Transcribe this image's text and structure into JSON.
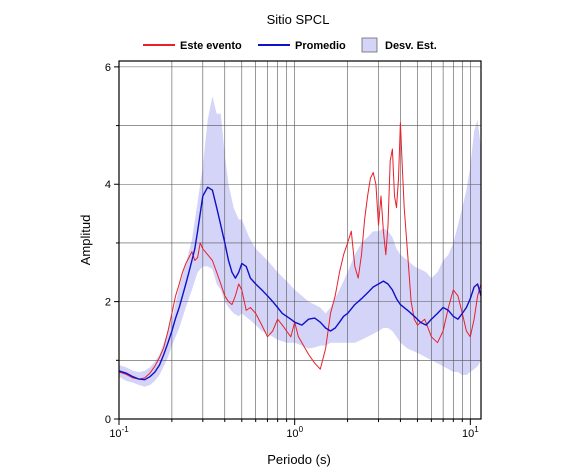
{
  "chart_data": {
    "type": "line",
    "title": "Sitio SPCL",
    "xlabel": "Periodo (s)",
    "ylabel": "Amplitud",
    "x_scale": "log",
    "xlim": [
      0.1,
      11.5
    ],
    "ylim": [
      0,
      6.1
    ],
    "x_ticks": [
      {
        "value": 0.1,
        "base": "10",
        "exp": "-1"
      },
      {
        "value": 1,
        "base": "10",
        "exp": "0"
      },
      {
        "value": 10,
        "base": "10",
        "exp": "1"
      }
    ],
    "y_ticks": [
      0,
      2,
      4,
      6
    ],
    "grid": true,
    "legend_position": "top",
    "legend": [
      {
        "label": "Este evento",
        "kind": "line",
        "color": "#e8202a"
      },
      {
        "label": "Promedio",
        "kind": "line",
        "color": "#1010c8"
      },
      {
        "label": "Desv. Est.",
        "kind": "band",
        "color": "#d4d4f8"
      }
    ],
    "series": [
      {
        "name": "Este evento",
        "color": "#e8202a",
        "x": [
          0.1,
          0.11,
          0.12,
          0.13,
          0.14,
          0.15,
          0.16,
          0.17,
          0.18,
          0.19,
          0.2,
          0.21,
          0.22,
          0.23,
          0.24,
          0.25,
          0.26,
          0.27,
          0.28,
          0.29,
          0.3,
          0.32,
          0.34,
          0.36,
          0.38,
          0.4,
          0.42,
          0.44,
          0.46,
          0.48,
          0.5,
          0.53,
          0.56,
          0.6,
          0.65,
          0.7,
          0.75,
          0.8,
          0.85,
          0.9,
          0.95,
          1.0,
          1.05,
          1.1,
          1.2,
          1.3,
          1.4,
          1.5,
          1.6,
          1.7,
          1.8,
          1.9,
          2.0,
          2.1,
          2.2,
          2.3,
          2.4,
          2.5,
          2.6,
          2.7,
          2.8,
          2.9,
          3.0,
          3.1,
          3.2,
          3.3,
          3.4,
          3.5,
          3.6,
          3.7,
          3.8,
          3.9,
          4.0,
          4.1,
          4.2,
          4.4,
          4.6,
          4.8,
          5.0,
          5.5,
          6.0,
          6.5,
          7.0,
          7.5,
          8.0,
          8.5,
          9.0,
          9.5,
          10.0,
          10.5,
          11.0,
          11.5
        ],
        "y": [
          0.8,
          0.76,
          0.7,
          0.68,
          0.7,
          0.78,
          0.9,
          1.05,
          1.22,
          1.5,
          1.8,
          2.1,
          2.3,
          2.5,
          2.65,
          2.75,
          2.85,
          2.7,
          2.75,
          3.0,
          2.9,
          2.8,
          2.7,
          2.5,
          2.3,
          2.1,
          2.0,
          1.95,
          2.1,
          2.3,
          2.2,
          1.85,
          1.9,
          1.8,
          1.6,
          1.4,
          1.5,
          1.7,
          1.6,
          1.5,
          1.4,
          1.65,
          1.4,
          1.3,
          1.1,
          0.95,
          0.85,
          1.2,
          1.8,
          2.1,
          2.5,
          2.8,
          3.0,
          3.2,
          2.6,
          2.4,
          2.8,
          3.4,
          3.8,
          4.1,
          4.2,
          4.0,
          3.3,
          3.8,
          3.2,
          2.8,
          3.3,
          4.4,
          4.6,
          3.8,
          3.6,
          4.1,
          5.05,
          4.3,
          3.6,
          2.8,
          2.0,
          1.7,
          1.6,
          1.7,
          1.4,
          1.3,
          1.5,
          1.9,
          2.2,
          2.1,
          1.8,
          1.5,
          1.4,
          1.7,
          2.1,
          2.3
        ]
      },
      {
        "name": "Promedio",
        "color": "#1010c8",
        "x": [
          0.1,
          0.11,
          0.12,
          0.13,
          0.14,
          0.15,
          0.16,
          0.17,
          0.18,
          0.19,
          0.2,
          0.21,
          0.22,
          0.23,
          0.24,
          0.25,
          0.26,
          0.27,
          0.28,
          0.29,
          0.3,
          0.32,
          0.34,
          0.36,
          0.38,
          0.4,
          0.42,
          0.44,
          0.46,
          0.48,
          0.5,
          0.53,
          0.56,
          0.6,
          0.65,
          0.7,
          0.75,
          0.8,
          0.85,
          0.9,
          0.95,
          1.0,
          1.1,
          1.2,
          1.3,
          1.4,
          1.5,
          1.6,
          1.7,
          1.8,
          1.9,
          2.0,
          2.2,
          2.4,
          2.6,
          2.8,
          3.0,
          3.2,
          3.4,
          3.6,
          3.8,
          4.0,
          4.4,
          4.8,
          5.2,
          5.6,
          6.0,
          6.5,
          7.0,
          7.5,
          8.0,
          8.5,
          9.0,
          9.5,
          10.0,
          10.5,
          11.0,
          11.5
        ],
        "y": [
          0.82,
          0.78,
          0.72,
          0.68,
          0.67,
          0.72,
          0.8,
          0.92,
          1.1,
          1.3,
          1.5,
          1.72,
          1.9,
          2.1,
          2.3,
          2.5,
          2.7,
          2.9,
          3.2,
          3.5,
          3.8,
          3.95,
          3.9,
          3.6,
          3.3,
          3.0,
          2.7,
          2.5,
          2.4,
          2.5,
          2.65,
          2.6,
          2.4,
          2.3,
          2.2,
          2.1,
          2.0,
          1.9,
          1.8,
          1.75,
          1.7,
          1.65,
          1.6,
          1.7,
          1.72,
          1.65,
          1.55,
          1.5,
          1.55,
          1.65,
          1.75,
          1.8,
          1.95,
          2.05,
          2.15,
          2.25,
          2.3,
          2.35,
          2.3,
          2.2,
          2.05,
          1.95,
          1.85,
          1.75,
          1.65,
          1.6,
          1.7,
          1.8,
          1.9,
          1.85,
          1.75,
          1.7,
          1.8,
          1.9,
          2.05,
          2.25,
          2.3,
          2.1
        ]
      }
    ],
    "band": {
      "name": "Desv. Est.",
      "color": "#d4d4f8",
      "x": [
        0.1,
        0.11,
        0.12,
        0.13,
        0.14,
        0.15,
        0.16,
        0.17,
        0.18,
        0.19,
        0.2,
        0.22,
        0.24,
        0.26,
        0.28,
        0.3,
        0.32,
        0.34,
        0.36,
        0.38,
        0.4,
        0.42,
        0.45,
        0.48,
        0.5,
        0.55,
        0.6,
        0.65,
        0.7,
        0.75,
        0.8,
        0.9,
        1.0,
        1.1,
        1.2,
        1.3,
        1.4,
        1.5,
        1.6,
        1.8,
        2.0,
        2.2,
        2.4,
        2.6,
        2.8,
        3.0,
        3.2,
        3.4,
        3.6,
        3.8,
        4.0,
        4.4,
        4.8,
        5.2,
        5.6,
        6.0,
        6.5,
        7.0,
        7.5,
        8.0,
        8.5,
        9.0,
        9.5,
        10.0,
        10.5,
        11.0,
        11.5
      ],
      "upper": [
        0.92,
        0.88,
        0.82,
        0.8,
        0.82,
        0.88,
        0.98,
        1.1,
        1.3,
        1.5,
        1.7,
        2.25,
        2.65,
        3.05,
        3.7,
        4.3,
        5.1,
        5.5,
        5.2,
        5.2,
        4.5,
        4.0,
        3.6,
        3.4,
        3.4,
        3.1,
        2.9,
        2.8,
        2.7,
        2.6,
        2.5,
        2.35,
        2.2,
        2.1,
        2.0,
        1.95,
        1.9,
        1.8,
        1.9,
        2.2,
        2.5,
        2.8,
        3.0,
        3.1,
        3.2,
        3.2,
        3.25,
        3.2,
        3.1,
        2.9,
        2.8,
        2.7,
        2.6,
        2.55,
        2.5,
        2.4,
        2.5,
        2.7,
        2.8,
        3.0,
        3.3,
        3.6,
        3.9,
        4.3,
        4.9,
        5.1,
        4.6
      ],
      "lower": [
        0.72,
        0.65,
        0.62,
        0.58,
        0.55,
        0.58,
        0.65,
        0.75,
        0.9,
        1.05,
        1.25,
        1.55,
        1.9,
        2.2,
        2.5,
        2.6,
        2.6,
        2.55,
        2.3,
        2.2,
        2.0,
        1.9,
        1.8,
        1.75,
        1.8,
        1.7,
        1.6,
        1.5,
        1.45,
        1.4,
        1.35,
        1.3,
        1.3,
        1.25,
        1.2,
        1.22,
        1.25,
        1.25,
        1.3,
        1.3,
        1.3,
        1.3,
        1.35,
        1.4,
        1.45,
        1.5,
        1.55,
        1.55,
        1.5,
        1.4,
        1.3,
        1.2,
        1.15,
        1.1,
        1.05,
        1.0,
        0.95,
        0.9,
        0.85,
        0.8,
        0.8,
        0.75,
        0.75,
        0.8,
        0.85,
        0.9,
        1.0
      ]
    }
  }
}
